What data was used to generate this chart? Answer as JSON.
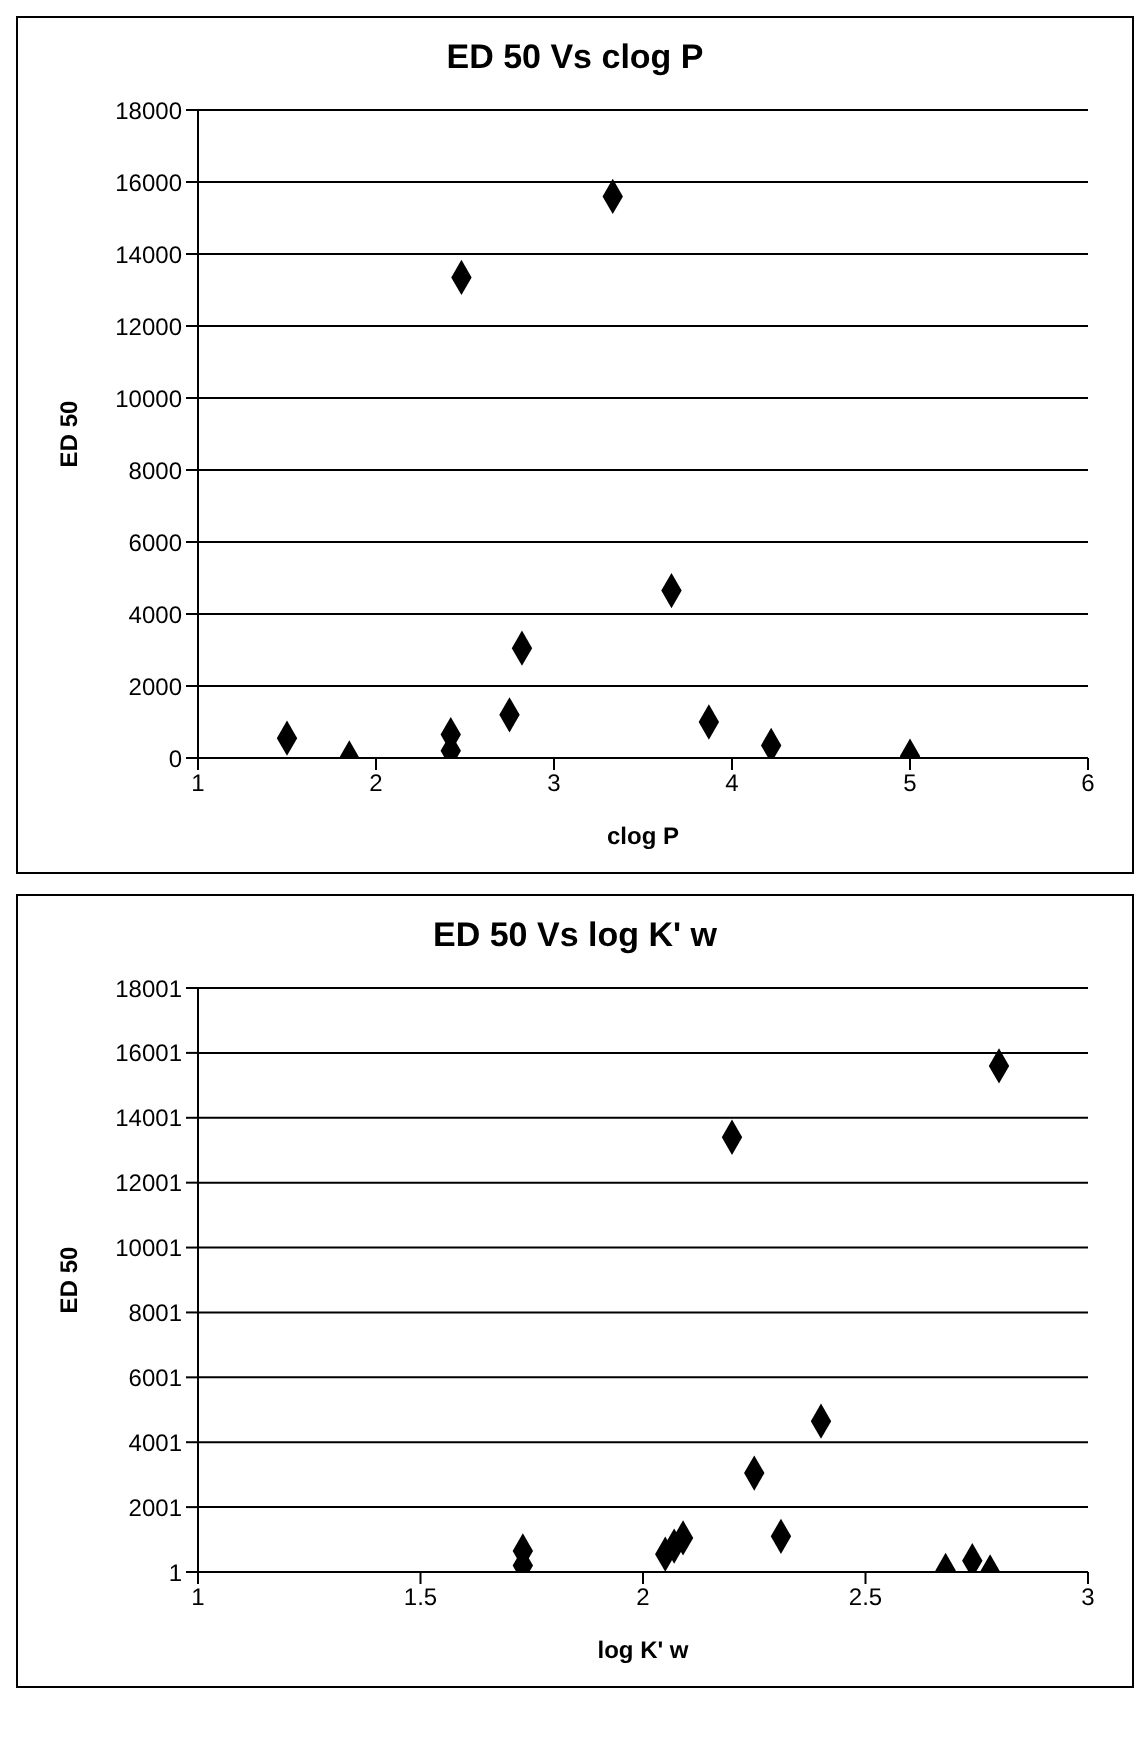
{
  "chart_data": [
    {
      "type": "scatter",
      "title": "ED 50 Vs clog P",
      "xlabel": "clog P",
      "ylabel": "ED 50",
      "x": [
        1.5,
        1.85,
        2.42,
        2.42,
        2.48,
        2.75,
        2.82,
        3.33,
        3.66,
        3.87,
        4.22,
        5.0
      ],
      "values": [
        550,
        0,
        650,
        200,
        13350,
        1200,
        3050,
        15600,
        4650,
        1000,
        350,
        50
      ],
      "color": "#000000",
      "marker": "diamond",
      "xlim": [
        1,
        6
      ],
      "xticks": [
        1,
        2,
        3,
        4,
        5,
        6
      ],
      "ylim": [
        0,
        18000
      ],
      "yticks": [
        0,
        2000,
        4000,
        6000,
        8000,
        10000,
        12000,
        14000,
        16000,
        18000
      ],
      "grid": "y"
    },
    {
      "type": "scatter",
      "title": "ED 50 Vs log K' w",
      "xlabel": "log K' w",
      "ylabel": "ED 50",
      "x": [
        1.73,
        1.73,
        2.05,
        2.07,
        2.09,
        2.2,
        2.25,
        2.31,
        2.4,
        2.68,
        2.74,
        2.78,
        2.8
      ],
      "values": [
        650,
        200,
        550,
        800,
        1050,
        13400,
        3050,
        1100,
        4650,
        50,
        350,
        1,
        15600
      ],
      "color": "#000000",
      "marker": "diamond",
      "xlim": [
        1,
        3
      ],
      "xticks": [
        1,
        1.5,
        2,
        2.5,
        3
      ],
      "ylim": [
        1,
        18001
      ],
      "yticks": [
        1,
        2001,
        4001,
        6001,
        8001,
        10001,
        12001,
        14001,
        16001,
        18001
      ],
      "grid": "y"
    }
  ]
}
